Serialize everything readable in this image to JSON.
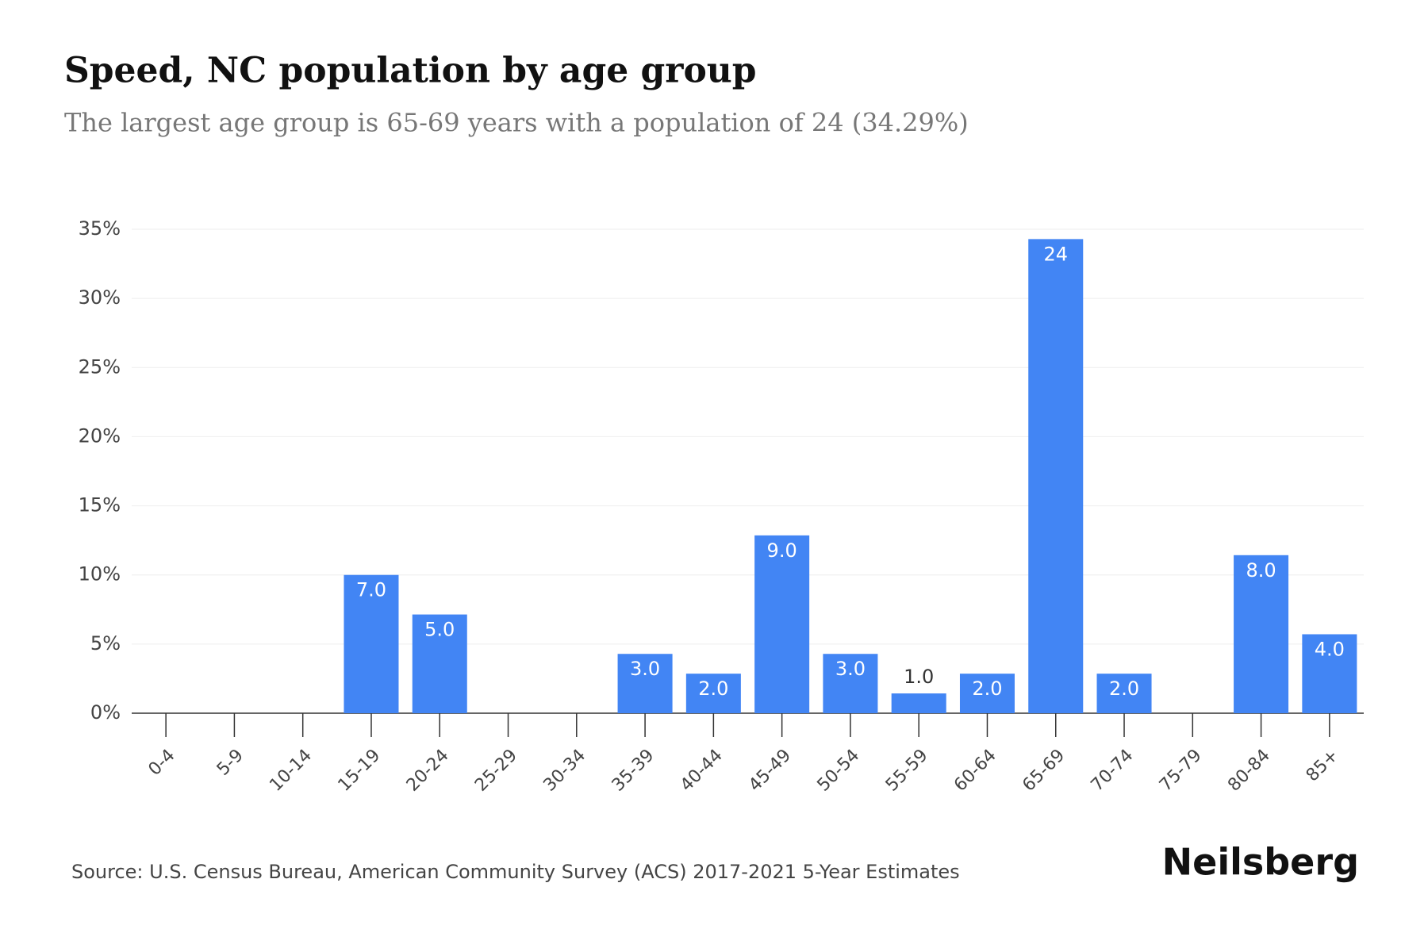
{
  "chart_data": {
    "type": "bar",
    "title": "Speed, NC population by age group",
    "subtitle": "The largest age group is 65-69 years with a population of 24 (34.29%)",
    "categories": [
      "0-4",
      "5-9",
      "10-14",
      "15-19",
      "20-24",
      "25-29",
      "30-34",
      "35-39",
      "40-44",
      "45-49",
      "50-54",
      "55-59",
      "60-64",
      "65-69",
      "70-74",
      "75-79",
      "80-84",
      "85+"
    ],
    "values": [
      0,
      0,
      0,
      10,
      7.14,
      0,
      0,
      4.29,
      2.86,
      12.86,
      4.29,
      1.43,
      2.86,
      34.29,
      2.86,
      0,
      11.43,
      5.71
    ],
    "value_labels": [
      null,
      null,
      null,
      "7.0",
      "5.0",
      null,
      null,
      "3.0",
      "2.0",
      "9.0",
      "3.0",
      "1.0",
      "2.0",
      "24",
      "2.0",
      null,
      "8.0",
      "4.0"
    ],
    "color": "#4285f4",
    "ylim": [
      0,
      35
    ],
    "yticks": [
      {
        "value": 0,
        "label": "0%"
      },
      {
        "value": 5,
        "label": "5%"
      },
      {
        "value": 10,
        "label": "10%"
      },
      {
        "value": 15,
        "label": "15%"
      },
      {
        "value": 20,
        "label": "20%"
      },
      {
        "value": 25,
        "label": "25%"
      },
      {
        "value": 30,
        "label": "30%"
      },
      {
        "value": 35,
        "label": "35%"
      }
    ],
    "grid": true,
    "source": "Source: U.S. Census Bureau, American Community Survey (ACS) 2017-2021 5-Year Estimates",
    "brand": "Neilsberg"
  }
}
